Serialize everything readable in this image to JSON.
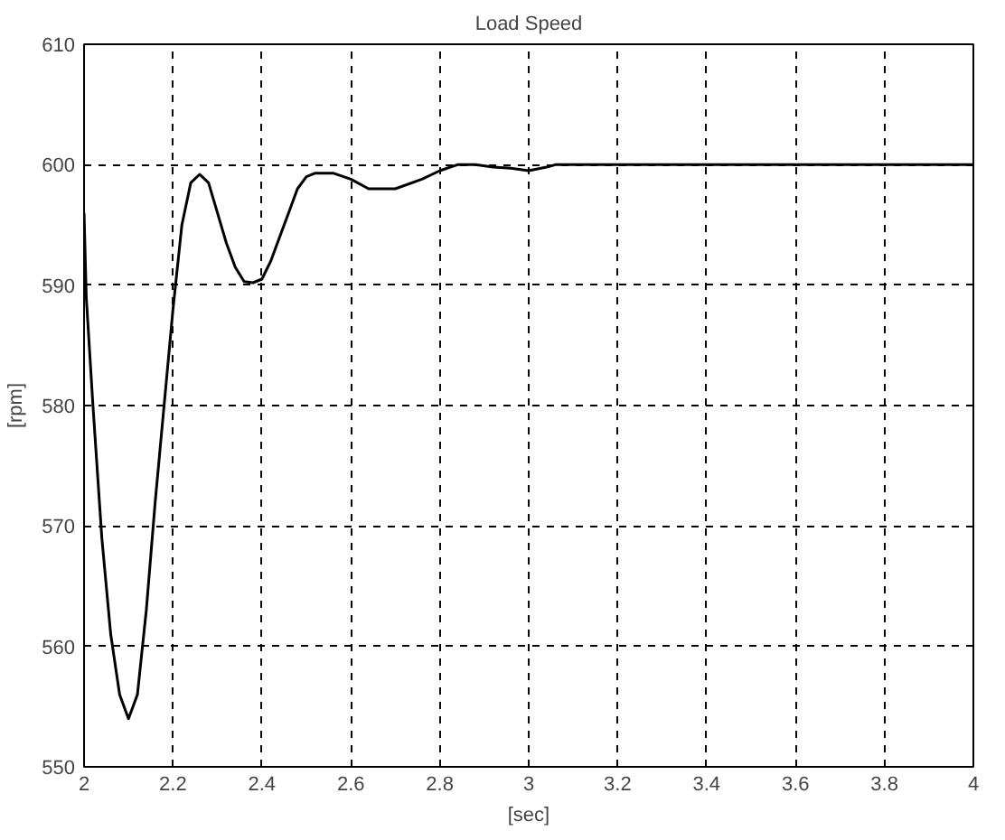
{
  "chart_data": {
    "type": "line",
    "title": "Load Speed",
    "xlabel": "[sec]",
    "ylabel": "[rpm]",
    "x": [
      2.0,
      2.005,
      2.02,
      2.04,
      2.06,
      2.08,
      2.1,
      2.12,
      2.14,
      2.16,
      2.18,
      2.2,
      2.22,
      2.24,
      2.26,
      2.28,
      2.3,
      2.32,
      2.34,
      2.36,
      2.38,
      2.4,
      2.42,
      2.44,
      2.46,
      2.48,
      2.5,
      2.52,
      2.56,
      2.6,
      2.64,
      2.7,
      2.76,
      2.8,
      2.84,
      2.88,
      2.92,
      2.96,
      3.0,
      3.04,
      3.06,
      4.0
    ],
    "series": [
      {
        "color": "#000000",
        "values": [
          596,
          589,
          580,
          569,
          561,
          556,
          554,
          556,
          563,
          572,
          580,
          588,
          595,
          598.5,
          599.2,
          598.5,
          596,
          593.5,
          591.5,
          590.3,
          590.2,
          590.5,
          592,
          594,
          596,
          598,
          599,
          599.3,
          599.3,
          598.8,
          598,
          598,
          598.8,
          599.5,
          600,
          600,
          599.8,
          599.7,
          599.5,
          599.8,
          600,
          600
        ]
      }
    ],
    "xlim": [
      2,
      4
    ],
    "ylim": [
      550,
      610
    ],
    "xticks": [
      2,
      2.2,
      2.4,
      2.6,
      2.8,
      3,
      3.2,
      3.4,
      3.6,
      3.8,
      4
    ],
    "yticks": [
      550,
      560,
      570,
      580,
      590,
      600,
      610
    ],
    "grid": true,
    "line_style": "solid"
  }
}
